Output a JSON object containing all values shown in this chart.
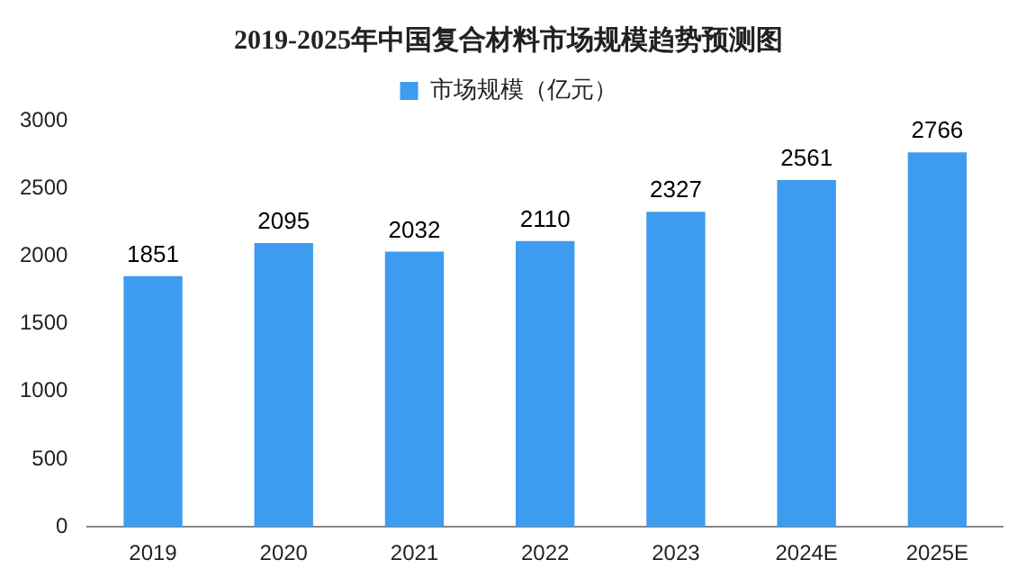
{
  "chart_data": {
    "type": "bar",
    "title": "2019-2025年中国复合材料市场规模趋势预测图",
    "categories": [
      "2019",
      "2020",
      "2021",
      "2022",
      "2023",
      "2024E",
      "2025E"
    ],
    "series": [
      {
        "name": "市场规模（亿元）",
        "color": "#3d9bf0",
        "values": [
          1851,
          2095,
          2032,
          2110,
          2327,
          2561,
          2766
        ]
      }
    ],
    "ylim": [
      0,
      3000
    ],
    "yticks": [
      0,
      500,
      1000,
      1500,
      2000,
      2500,
      3000
    ],
    "grid": false,
    "legend": "top",
    "data_labels": true
  }
}
